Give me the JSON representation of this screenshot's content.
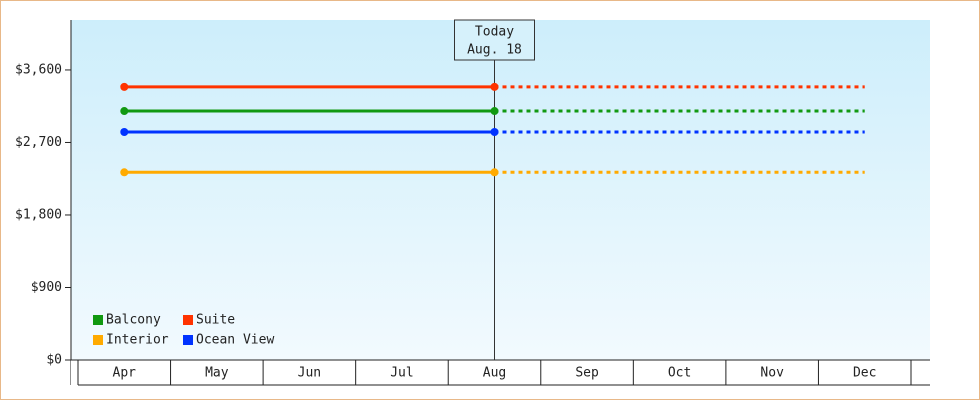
{
  "chart_data": {
    "type": "line",
    "categories": [
      "Apr",
      "May",
      "Jun",
      "Jul",
      "Aug",
      "Sep",
      "Oct",
      "Nov",
      "Dec"
    ],
    "series": [
      {
        "name": "Balcony",
        "color": "#119911",
        "values": [
          3090,
          3090,
          3090,
          3090,
          3090,
          3090,
          3090,
          3090,
          3090
        ]
      },
      {
        "name": "Suite",
        "color": "#ff3300",
        "values": [
          3390,
          3390,
          3390,
          3390,
          3390,
          3390,
          3390,
          3390,
          3390
        ]
      },
      {
        "name": "Interior",
        "color": "#ffaa00",
        "values": [
          2330,
          2330,
          2330,
          2330,
          2330,
          2330,
          2330,
          2330,
          2330
        ]
      },
      {
        "name": "Ocean View",
        "color": "#0033ff",
        "values": [
          2830,
          2830,
          2830,
          2830,
          2830,
          2830,
          2830,
          2830,
          2830
        ]
      }
    ],
    "ylim": [
      0,
      4220
    ],
    "yticks": [
      {
        "value": 0,
        "label": "$0"
      },
      {
        "value": 900,
        "label": "$900"
      },
      {
        "value": 1800,
        "label": "$1,800"
      },
      {
        "value": 2700,
        "label": "$2,700"
      },
      {
        "value": 3600,
        "label": "$3,600"
      }
    ],
    "annotation": {
      "lines": [
        "Today",
        "Aug. 18"
      ],
      "at": "Aug"
    },
    "legend": "lower-left"
  }
}
